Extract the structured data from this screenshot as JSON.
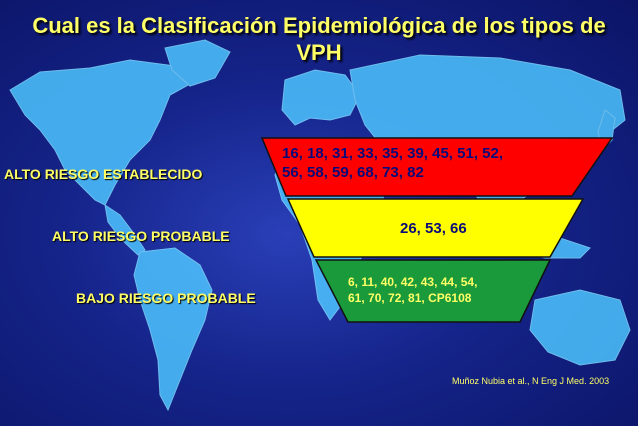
{
  "title": {
    "line1": "Cual es la Clasificación Epidemiológica de los tipos de",
    "line2": "VPH"
  },
  "categories": [
    {
      "label": "ALTO RIESGO ESTABLECIDO",
      "types_line1": "16, 18, 31, 33, 35, 39, 45, 51, 52,",
      "types_line2": "56, 58, 59, 68, 73, 82",
      "color": "#ff0000"
    },
    {
      "label": "ALTO RIESGO PROBABLE",
      "types_line1": "26, 53, 66",
      "color": "#ffff00"
    },
    {
      "label": "BAJO RIESGO PROBABLE",
      "types_line1": "6, 11, 40, 42, 43, 44, 54,",
      "types_line2": "61, 70, 72, 81, CP6108",
      "color": "#1a9a3a"
    }
  ],
  "citation": "Muñoz Nubia et al., N Eng J Med. 2003"
}
